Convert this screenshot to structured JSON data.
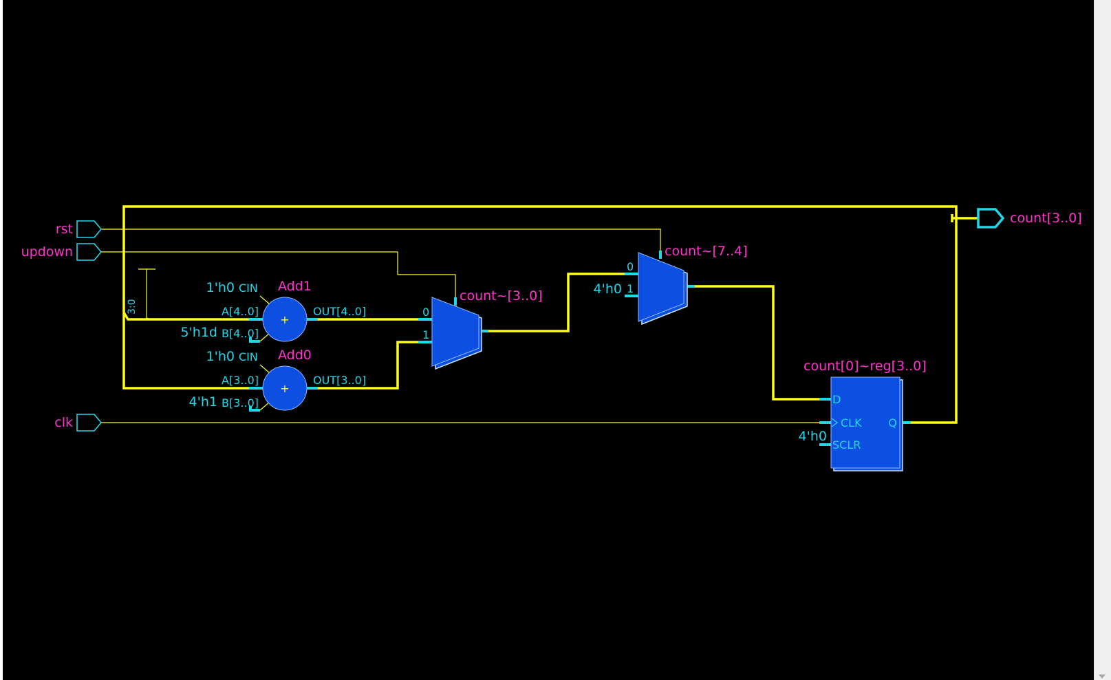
{
  "ports": {
    "rst": "rst",
    "updown": "updown",
    "clk": "clk",
    "count_out": "count[3..0]"
  },
  "adders": {
    "add1": {
      "name": "Add1",
      "cin_const": "1'h0",
      "cin_pin": "CIN",
      "a_pin": "A[4..0]",
      "b_const": "5'h1d",
      "b_pin": "B[4..0]",
      "out_pin": "OUT[4..0]",
      "symbol": "+"
    },
    "add0": {
      "name": "Add0",
      "cin_const": "1'h0",
      "cin_pin": "CIN",
      "a_pin": "A[3..0]",
      "b_const": "4'h1",
      "b_pin": "B[3..0]",
      "out_pin": "OUT[3..0]",
      "symbol": "+"
    }
  },
  "bus_slice": "3:0",
  "mux_a": {
    "name": "count~[3..0]",
    "in0": "0",
    "in1": "1"
  },
  "mux_b": {
    "name": "count~[7..4]",
    "in0": "0",
    "in1": "1",
    "const": "4'h0"
  },
  "register": {
    "name": "count[0]~reg[3..0]",
    "d_pin": "D",
    "clk_pin": "CLK",
    "sclr_pin": "SCLR",
    "q_pin": "Q",
    "sclr_const": "4'h0"
  },
  "colors": {
    "background": "#000000",
    "wire": "#ffff1a",
    "block": "#0d4fe0",
    "pin_text": "#21d7e8",
    "name_text": "#ff33cc"
  }
}
